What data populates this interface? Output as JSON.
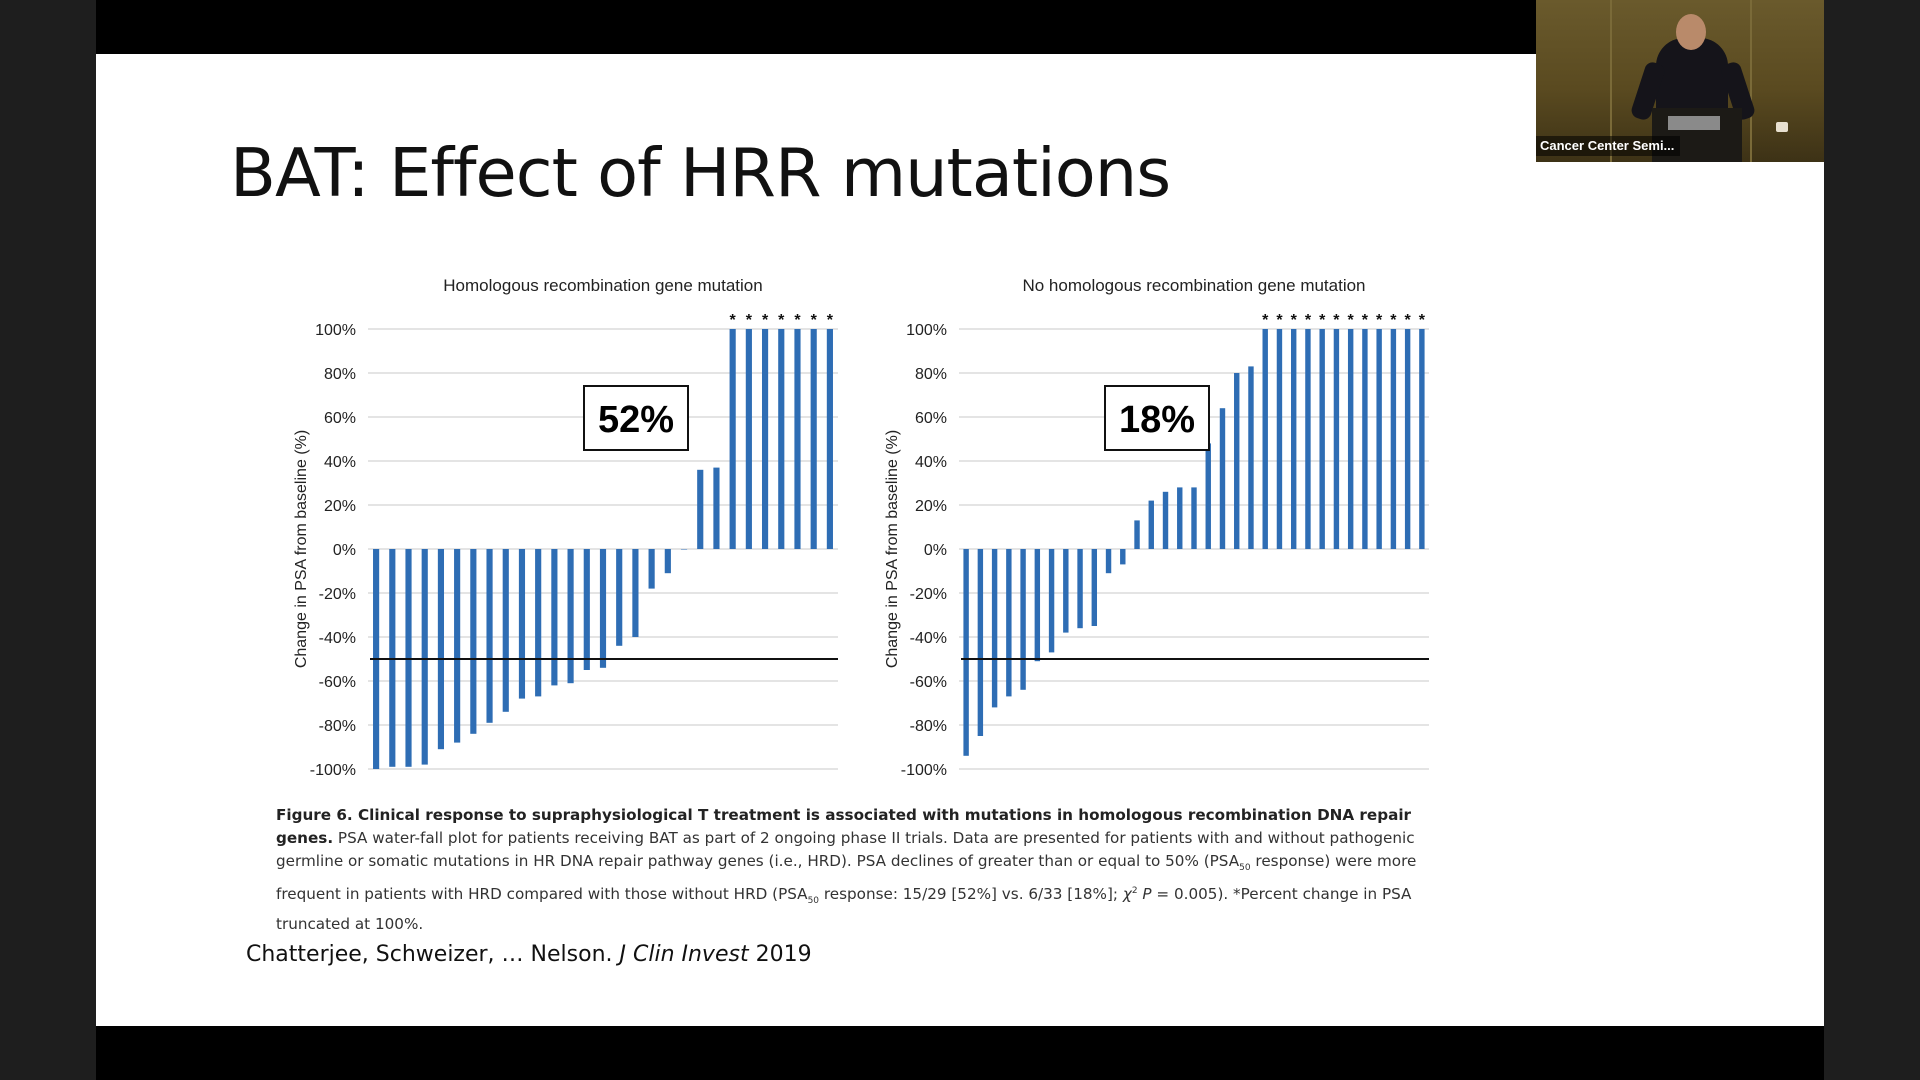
{
  "slide": {
    "title": "BAT:  Effect of HRR mutations",
    "pct_left": "52%",
    "pct_right": "18%",
    "caption": {
      "bold": "Figure 6. Clinical response to supraphysiological T treatment is associated with mutations in homologous recombination DNA repair genes.",
      "seg1": " PSA water-fall plot for patients receiving BAT as part of 2 ongoing phase II trials. Data are presented for patients with and without pathogenic germline or somatic mutations in HR DNA repair pathway genes (i.e., HRD). PSA declines of greater than or equal to 50% (PSA",
      "sub": "50",
      "seg2": " response) were more frequent in patients with HRD compared with those without HRD (PSA",
      "seg3": " response: 15/29 [52%] vs. 6/33 [18%]; ",
      "chi": "χ",
      "chi_sup": "2",
      "p_italic": " P",
      "seg4": " = 0.005). *Percent change in PSA truncated at 100%."
    },
    "citation": {
      "authors": "Chatterjee, Schweizer, … Nelson.  ",
      "journal": "J Clin Invest",
      "year": " 2019"
    }
  },
  "webcam": {
    "label": "Cancer Center Semi..."
  },
  "chart_data": [
    {
      "type": "bar",
      "title": "Homologous recombination gene mutation",
      "ylabel": "Change in PSA from baseline (%)",
      "ylim": [
        -100,
        100
      ],
      "yticks": [
        "100%",
        "80%",
        "60%",
        "40%",
        "20%",
        "0%",
        "-20%",
        "-40%",
        "-60%",
        "-80%",
        "-100%"
      ],
      "reference_line": -50,
      "bar_color": "#2e6db4",
      "values": [
        -100,
        -99,
        -99,
        -98,
        -91,
        -88,
        -84,
        -79,
        -74,
        -68,
        -67,
        -62,
        -61,
        -55,
        -54,
        -44,
        -40,
        -18,
        -11,
        0,
        36,
        37,
        100,
        100,
        100,
        100,
        100,
        100,
        100
      ],
      "truncated_marker": "*",
      "truncated_count": 7
    },
    {
      "type": "bar",
      "title": "No homologous recombination gene mutation",
      "ylabel": "Change in PSA from baseline (%)",
      "ylim": [
        -100,
        100
      ],
      "yticks": [
        "100%",
        "80%",
        "60%",
        "40%",
        "20%",
        "0%",
        "-20%",
        "-40%",
        "-60%",
        "-80%",
        "-100%"
      ],
      "reference_line": -50,
      "bar_color": "#2e6db4",
      "values": [
        -94,
        -85,
        -72,
        -67,
        -64,
        -51,
        -47,
        -38,
        -36,
        -35,
        -11,
        -7,
        13,
        22,
        26,
        28,
        28,
        48,
        64,
        80,
        83,
        100,
        100,
        100,
        100,
        100,
        100,
        100,
        100,
        100,
        100,
        100,
        100
      ],
      "truncated_marker": "*",
      "truncated_count": 12
    }
  ]
}
